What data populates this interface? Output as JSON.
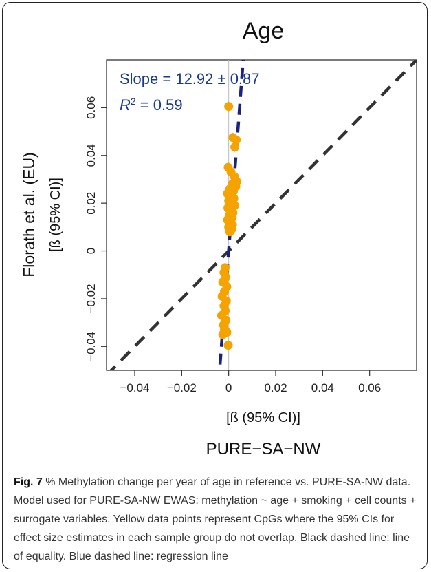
{
  "chart_data": {
    "type": "scatter",
    "title": "Age",
    "xlabel_main": "PURE−SA−NW",
    "xlabel_sub": "[ß (95% CI)]",
    "ylabel_main": "Florath et al. (EU)",
    "ylabel_sub": "[ß (95% CI)]",
    "xlim": [
      -0.052,
      0.08
    ],
    "ylim": [
      -0.05,
      0.08
    ],
    "xticks": [
      -0.04,
      -0.02,
      0,
      0.02,
      0.04,
      0.06
    ],
    "xtick_labels": [
      "−0.04",
      "−0.02",
      "0",
      "0.02",
      "0.04",
      "0.06"
    ],
    "yticks": [
      -0.04,
      -0.02,
      0,
      0.02,
      0.04,
      0.06
    ],
    "ytick_labels": [
      "−0.04",
      "−0.02",
      "0",
      "0.02",
      "0.04",
      "0.06"
    ],
    "annotation_slope": "Slope = 12.92 ±  0.87",
    "annotation_r2_symbol": "R",
    "annotation_r2_exp": "2",
    "annotation_r2_value": " = 0.59",
    "equality_line_color": "#333333",
    "regression_line_color": "#1a237e",
    "point_color": "#f5a300",
    "regression": {
      "slope": 12.92,
      "intercept": 0.0
    },
    "points": [
      {
        "x": 0.0,
        "y": 0.0605
      },
      {
        "x": 0.0018,
        "y": 0.0475
      },
      {
        "x": 0.0032,
        "y": 0.0465
      },
      {
        "x": 0.0026,
        "y": 0.0435
      },
      {
        "x": -0.0002,
        "y": 0.035
      },
      {
        "x": 0.001,
        "y": 0.033
      },
      {
        "x": 0.0025,
        "y": 0.031
      },
      {
        "x": 0.0035,
        "y": 0.029
      },
      {
        "x": 0.0015,
        "y": 0.028
      },
      {
        "x": 0.003,
        "y": 0.027
      },
      {
        "x": 0.0005,
        "y": 0.026
      },
      {
        "x": 0.002,
        "y": 0.025
      },
      {
        "x": -0.0005,
        "y": 0.024
      },
      {
        "x": 0.001,
        "y": 0.023
      },
      {
        "x": 0.0022,
        "y": 0.022
      },
      {
        "x": 0.0,
        "y": 0.021
      },
      {
        "x": 0.0012,
        "y": 0.02
      },
      {
        "x": 0.0025,
        "y": 0.019
      },
      {
        "x": -0.0003,
        "y": 0.018
      },
      {
        "x": 0.001,
        "y": 0.017
      },
      {
        "x": 0.0018,
        "y": 0.016
      },
      {
        "x": 0.0003,
        "y": 0.015
      },
      {
        "x": 0.0015,
        "y": 0.014
      },
      {
        "x": -0.0005,
        "y": 0.013
      },
      {
        "x": 0.0008,
        "y": 0.012
      },
      {
        "x": 0.0016,
        "y": 0.011
      },
      {
        "x": 0.0,
        "y": 0.01
      },
      {
        "x": 0.0012,
        "y": 0.009
      },
      {
        "x": 0.0005,
        "y": 0.008
      },
      {
        "x": -0.0015,
        "y": -0.007
      },
      {
        "x": -0.002,
        "y": -0.009
      },
      {
        "x": -0.0012,
        "y": -0.011
      },
      {
        "x": -0.0025,
        "y": -0.013
      },
      {
        "x": -0.0008,
        "y": -0.015
      },
      {
        "x": -0.0018,
        "y": -0.017
      },
      {
        "x": -0.0028,
        "y": -0.019
      },
      {
        "x": -0.001,
        "y": -0.021
      },
      {
        "x": -0.002,
        "y": -0.023
      },
      {
        "x": -0.0015,
        "y": -0.025
      },
      {
        "x": -0.003,
        "y": -0.027
      },
      {
        "x": -0.0012,
        "y": -0.029
      },
      {
        "x": -0.0022,
        "y": -0.031
      },
      {
        "x": -0.0018,
        "y": -0.033
      },
      {
        "x": -0.0008,
        "y": -0.034
      },
      {
        "x": -0.0025,
        "y": -0.035
      },
      {
        "x": -0.0002,
        "y": -0.0395
      }
    ]
  },
  "caption": {
    "label": "Fig. 7",
    "text": " % Methylation change per year of age in reference vs. PURE-SA-NW data. Model used for PURE-SA-NW EWAS: methylation ~ age + smoking + cell counts + surrogate variables. Yellow data points represent CpGs where the 95% CIs for effect size estimates in each sample group do not overlap. Black dashed line: line of equality. Blue dashed line: regression line"
  }
}
